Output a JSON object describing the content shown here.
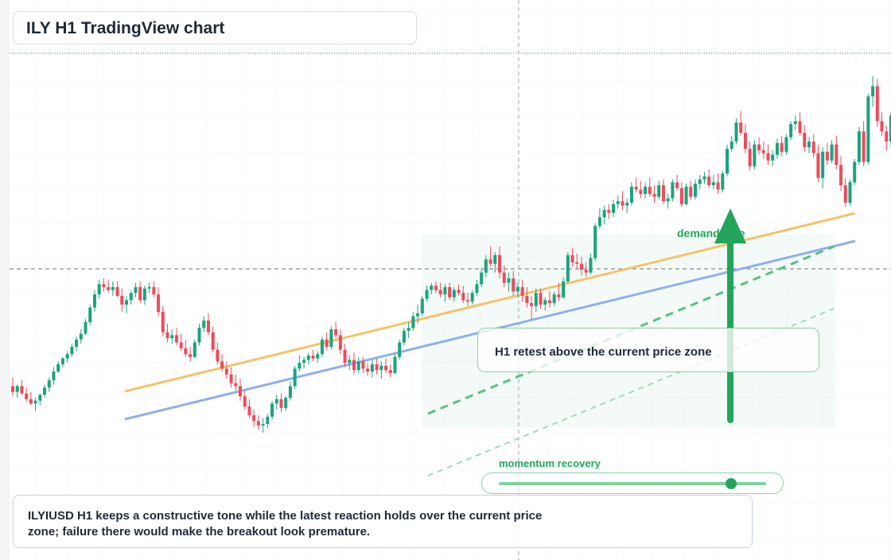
{
  "title": "ILY H1 TradingView chart",
  "annotations": {
    "demand_label": "demand side",
    "callout": "H1 retest above the current price zone",
    "momentum_label": "momentum recovery",
    "momentum_level": 0.87,
    "commentary": "ILYIUSD H1 keeps a constructive tone while the latest reaction holds over the current price zone; failure there would make the breakout look premature."
  },
  "colors": {
    "up": "#1aa37e",
    "down": "#ef4a5a",
    "trend_orange": "#f5c26b",
    "trend_blue": "#8fb0ee",
    "accent_green": "#22a55a"
  },
  "chart_data": {
    "type": "candlestick",
    "symbol": "ILYIUSD",
    "timeframe": "H1",
    "grid": true,
    "y_axis_labels": false,
    "x_axis_labels": false,
    "candles_ohlc": [
      [
        17.0,
        17.6,
        16.3,
        16.6
      ],
      [
        16.6,
        17.1,
        16.2,
        17.0
      ],
      [
        17.0,
        17.4,
        16.4,
        16.5
      ],
      [
        16.5,
        16.9,
        15.9,
        16.1
      ],
      [
        16.1,
        16.6,
        15.7,
        15.8
      ],
      [
        15.8,
        16.2,
        15.3,
        16.0
      ],
      [
        16.0,
        16.5,
        15.7,
        16.4
      ],
      [
        16.4,
        17.1,
        16.2,
        16.9
      ],
      [
        16.9,
        17.6,
        16.6,
        17.4
      ],
      [
        17.4,
        18.3,
        17.1,
        18.0
      ],
      [
        18.0,
        18.7,
        17.9,
        18.5
      ],
      [
        18.5,
        19.0,
        18.3,
        18.9
      ],
      [
        18.9,
        19.4,
        18.6,
        19.2
      ],
      [
        19.2,
        19.9,
        19.0,
        19.7
      ],
      [
        19.7,
        20.4,
        19.4,
        20.2
      ],
      [
        20.2,
        20.9,
        19.9,
        20.6
      ],
      [
        20.6,
        21.6,
        20.5,
        21.4
      ],
      [
        21.4,
        22.6,
        21.2,
        22.4
      ],
      [
        22.4,
        23.6,
        22.1,
        23.3
      ],
      [
        23.3,
        24.3,
        23.0,
        24.0
      ],
      [
        24.0,
        24.4,
        23.5,
        23.8
      ],
      [
        23.8,
        24.3,
        23.4,
        23.6
      ],
      [
        23.6,
        24.2,
        23.2,
        23.8
      ],
      [
        23.8,
        24.2,
        23.1,
        23.2
      ],
      [
        23.2,
        23.7,
        22.1,
        22.6
      ],
      [
        22.6,
        23.2,
        22.0,
        22.9
      ],
      [
        22.9,
        23.6,
        22.6,
        23.4
      ],
      [
        23.4,
        24.1,
        23.1,
        23.8
      ],
      [
        23.8,
        24.2,
        22.7,
        22.9
      ],
      [
        22.9,
        23.9,
        22.6,
        23.7
      ],
      [
        23.7,
        24.1,
        23.4,
        23.8
      ],
      [
        23.8,
        24.2,
        23.1,
        23.3
      ],
      [
        23.3,
        23.8,
        21.8,
        22.1
      ],
      [
        22.1,
        22.5,
        20.4,
        20.7
      ],
      [
        20.7,
        21.3,
        20.0,
        20.3
      ],
      [
        20.3,
        20.9,
        19.9,
        20.5
      ],
      [
        20.5,
        21.0,
        19.8,
        20.0
      ],
      [
        20.0,
        20.6,
        19.4,
        19.6
      ],
      [
        19.6,
        20.2,
        19.0,
        19.2
      ],
      [
        19.2,
        19.7,
        18.7,
        19.0
      ],
      [
        19.0,
        20.2,
        18.9,
        20.0
      ],
      [
        20.0,
        21.3,
        19.8,
        21.0
      ],
      [
        21.0,
        21.8,
        20.7,
        21.5
      ],
      [
        21.5,
        22.0,
        20.5,
        20.7
      ],
      [
        20.7,
        21.1,
        19.3,
        19.5
      ],
      [
        19.5,
        20.0,
        18.5,
        18.7
      ],
      [
        18.7,
        19.2,
        18.0,
        18.2
      ],
      [
        18.2,
        18.7,
        17.5,
        17.8
      ],
      [
        17.8,
        18.3,
        16.9,
        17.2
      ],
      [
        17.2,
        17.8,
        16.7,
        17.0
      ],
      [
        17.0,
        17.5,
        16.0,
        16.3
      ],
      [
        16.3,
        16.7,
        15.4,
        15.6
      ],
      [
        15.6,
        16.1,
        14.8,
        15.0
      ],
      [
        15.0,
        15.4,
        14.2,
        14.6
      ],
      [
        14.6,
        15.0,
        14.0,
        14.3
      ],
      [
        14.3,
        14.8,
        13.8,
        14.4
      ],
      [
        14.4,
        15.1,
        14.1,
        14.9
      ],
      [
        14.9,
        16.0,
        14.7,
        15.8
      ],
      [
        15.8,
        16.4,
        15.4,
        16.1
      ],
      [
        16.1,
        16.5,
        15.2,
        15.5
      ],
      [
        15.5,
        16.3,
        15.3,
        16.2
      ],
      [
        16.2,
        17.3,
        16.0,
        17.0
      ],
      [
        17.0,
        18.4,
        16.8,
        18.2
      ],
      [
        18.2,
        19.1,
        18.0,
        18.6
      ],
      [
        18.6,
        19.0,
        18.2,
        18.8
      ],
      [
        18.8,
        19.3,
        18.5,
        19.1
      ],
      [
        19.1,
        19.5,
        18.7,
        18.9
      ],
      [
        18.9,
        19.4,
        18.6,
        19.2
      ],
      [
        19.2,
        20.4,
        19.0,
        20.2
      ],
      [
        20.2,
        20.7,
        19.5,
        19.7
      ],
      [
        19.7,
        21.1,
        19.5,
        20.9
      ],
      [
        20.9,
        21.4,
        20.3,
        20.5
      ],
      [
        20.5,
        20.9,
        19.2,
        19.5
      ],
      [
        19.5,
        19.9,
        18.3,
        18.6
      ],
      [
        18.6,
        19.1,
        18.1,
        18.8
      ],
      [
        18.8,
        19.3,
        17.8,
        18.1
      ],
      [
        18.1,
        19.0,
        17.9,
        18.7
      ],
      [
        18.7,
        19.0,
        17.9,
        18.2
      ],
      [
        18.2,
        18.6,
        17.7,
        18.0
      ],
      [
        18.0,
        18.8,
        17.6,
        18.5
      ],
      [
        18.5,
        18.9,
        17.8,
        18.1
      ],
      [
        18.1,
        18.7,
        17.5,
        18.4
      ],
      [
        18.4,
        18.9,
        17.9,
        18.1
      ],
      [
        18.1,
        18.5,
        17.6,
        17.9
      ],
      [
        17.9,
        19.2,
        17.8,
        19.0
      ],
      [
        19.0,
        20.2,
        18.8,
        20.0
      ],
      [
        20.0,
        21.0,
        19.8,
        20.8
      ],
      [
        20.8,
        21.4,
        20.3,
        21.0
      ],
      [
        21.0,
        22.1,
        20.8,
        21.8
      ],
      [
        21.8,
        22.6,
        21.3,
        22.0
      ],
      [
        22.0,
        23.2,
        21.8,
        23.0
      ],
      [
        23.0,
        23.9,
        22.8,
        23.6
      ],
      [
        23.6,
        24.1,
        23.3,
        23.9
      ],
      [
        23.9,
        24.2,
        23.4,
        23.6
      ],
      [
        23.6,
        24.1,
        23.1,
        23.3
      ],
      [
        23.3,
        24.0,
        22.8,
        23.8
      ],
      [
        23.8,
        24.1,
        22.9,
        23.1
      ],
      [
        23.1,
        23.8,
        22.8,
        23.6
      ],
      [
        23.6,
        24.0,
        23.2,
        23.4
      ],
      [
        23.4,
        23.9,
        22.7,
        22.9
      ],
      [
        22.9,
        23.4,
        22.5,
        22.8
      ],
      [
        22.8,
        23.6,
        22.6,
        23.4
      ],
      [
        23.4,
        24.3,
        23.2,
        24.0
      ],
      [
        24.0,
        25.1,
        23.8,
        24.8
      ],
      [
        24.8,
        26.0,
        24.5,
        25.7
      ],
      [
        25.7,
        26.6,
        25.2,
        25.4
      ],
      [
        25.4,
        26.2,
        24.8,
        26.0
      ],
      [
        26.0,
        26.6,
        24.4,
        24.8
      ],
      [
        24.8,
        25.3,
        23.8,
        24.1
      ],
      [
        24.1,
        24.8,
        23.5,
        24.4
      ],
      [
        24.4,
        24.9,
        23.2,
        23.5
      ],
      [
        23.5,
        24.1,
        23.1,
        23.8
      ],
      [
        23.8,
        24.3,
        22.8,
        23.2
      ],
      [
        23.2,
        23.8,
        22.4,
        22.7
      ],
      [
        22.7,
        23.2,
        21.6,
        22.5
      ],
      [
        22.5,
        23.7,
        22.1,
        23.4
      ],
      [
        23.4,
        23.7,
        22.3,
        22.6
      ],
      [
        22.6,
        23.1,
        22.2,
        22.9
      ],
      [
        22.9,
        23.5,
        22.4,
        22.7
      ],
      [
        22.7,
        23.5,
        22.5,
        23.3
      ],
      [
        23.3,
        24.1,
        22.8,
        23.1
      ],
      [
        23.1,
        24.5,
        23.0,
        24.2
      ],
      [
        24.2,
        26.2,
        24.1,
        26.0
      ],
      [
        26.0,
        26.5,
        25.2,
        25.5
      ],
      [
        25.5,
        26.1,
        25.0,
        25.4
      ],
      [
        25.4,
        25.9,
        24.6,
        25.0
      ],
      [
        25.0,
        25.5,
        24.5,
        24.8
      ],
      [
        24.8,
        26.1,
        24.7,
        25.8
      ],
      [
        25.8,
        28.2,
        25.6,
        28.0
      ],
      [
        28.0,
        29.2,
        27.8,
        28.6
      ],
      [
        28.6,
        29.4,
        28.1,
        29.1
      ],
      [
        29.1,
        29.5,
        28.5,
        28.9
      ],
      [
        28.9,
        29.8,
        28.6,
        29.5
      ],
      [
        29.5,
        30.1,
        29.2,
        29.7
      ],
      [
        29.7,
        30.4,
        29.1,
        29.4
      ],
      [
        29.4,
        29.9,
        28.9,
        29.6
      ],
      [
        29.6,
        31.0,
        29.4,
        30.7
      ],
      [
        30.7,
        31.3,
        30.3,
        30.5
      ],
      [
        30.5,
        31.1,
        29.9,
        30.2
      ],
      [
        30.2,
        31.0,
        29.9,
        30.7
      ],
      [
        30.7,
        31.3,
        30.0,
        30.2
      ],
      [
        30.2,
        30.8,
        29.6,
        30.0
      ],
      [
        30.0,
        31.1,
        29.8,
        30.8
      ],
      [
        30.8,
        31.2,
        29.5,
        29.7
      ],
      [
        29.7,
        30.2,
        29.2,
        29.9
      ],
      [
        29.9,
        31.2,
        29.7,
        31.0
      ],
      [
        31.0,
        31.5,
        30.4,
        30.6
      ],
      [
        30.6,
        31.0,
        29.3,
        29.5
      ],
      [
        29.5,
        30.9,
        29.4,
        30.7
      ],
      [
        30.7,
        31.1,
        29.8,
        30.0
      ],
      [
        30.0,
        31.2,
        29.8,
        30.9
      ],
      [
        30.9,
        31.5,
        30.5,
        31.2
      ],
      [
        31.2,
        31.7,
        30.9,
        31.4
      ],
      [
        31.4,
        31.9,
        30.6,
        30.8
      ],
      [
        30.8,
        31.5,
        30.5,
        31.0
      ],
      [
        31.0,
        31.6,
        30.2,
        30.5
      ],
      [
        30.5,
        31.8,
        30.3,
        31.6
      ],
      [
        31.6,
        33.6,
        31.4,
        33.3
      ],
      [
        33.3,
        34.2,
        33.1,
        33.8
      ],
      [
        33.8,
        35.4,
        33.6,
        35.1
      ],
      [
        35.1,
        35.9,
        34.2,
        34.4
      ],
      [
        34.4,
        35.0,
        33.0,
        33.3
      ],
      [
        33.3,
        33.8,
        31.8,
        32.1
      ],
      [
        32.1,
        33.9,
        31.9,
        33.6
      ],
      [
        33.6,
        34.1,
        32.9,
        33.2
      ],
      [
        33.2,
        33.8,
        32.6,
        33.0
      ],
      [
        33.0,
        33.6,
        32.2,
        32.5
      ],
      [
        32.5,
        33.2,
        32.1,
        32.9
      ],
      [
        32.9,
        34.0,
        32.6,
        33.7
      ],
      [
        33.7,
        34.2,
        32.8,
        33.1
      ],
      [
        33.1,
        34.3,
        32.9,
        34.1
      ],
      [
        34.1,
        35.2,
        33.9,
        35.0
      ],
      [
        35.0,
        35.6,
        34.6,
        35.2
      ],
      [
        35.2,
        35.8,
        34.2,
        34.4
      ],
      [
        34.4,
        34.9,
        33.1,
        33.4
      ],
      [
        33.4,
        34.1,
        33.0,
        33.8
      ],
      [
        33.8,
        34.3,
        32.7,
        33.0
      ],
      [
        33.0,
        33.6,
        31.0,
        31.3
      ],
      [
        31.3,
        33.4,
        30.6,
        33.1
      ],
      [
        33.1,
        33.7,
        32.2,
        32.5
      ],
      [
        32.5,
        33.9,
        32.3,
        33.6
      ],
      [
        33.6,
        34.2,
        31.9,
        32.2
      ],
      [
        32.2,
        32.8,
        30.4,
        30.8
      ],
      [
        30.8,
        31.3,
        29.3,
        29.6
      ],
      [
        29.6,
        31.2,
        29.4,
        31.0
      ],
      [
        31.0,
        32.6,
        30.8,
        32.4
      ],
      [
        32.4,
        34.8,
        32.2,
        34.5
      ],
      [
        34.5,
        35.2,
        32.1,
        32.4
      ],
      [
        32.4,
        37.1,
        32.2,
        36.9
      ],
      [
        36.9,
        38.3,
        36.2,
        37.6
      ],
      [
        37.6,
        38.1,
        34.8,
        35.2
      ],
      [
        35.2,
        35.8,
        34.2,
        34.5
      ],
      [
        34.5,
        34.9,
        33.2,
        33.8
      ],
      [
        33.8,
        35.8,
        33.5,
        35.6
      ],
      [
        35.6,
        37.0,
        35.4,
        36.8
      ]
    ],
    "reference_lines": [
      "dotted line at recent high",
      "dashed horizontal line"
    ],
    "trendlines": [
      "orange rising support",
      "blue rising support",
      "green dashed channel lines"
    ],
    "annotations": [
      "demand side upward arrow",
      "callout box",
      "momentum recovery slider"
    ]
  }
}
